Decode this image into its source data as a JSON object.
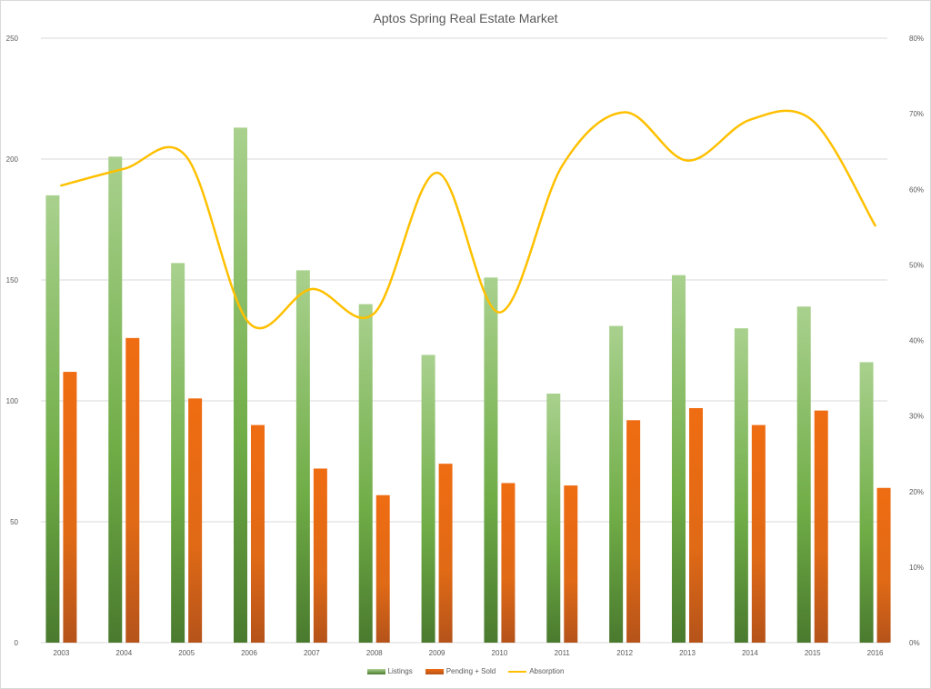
{
  "chart_data": {
    "type": "bar",
    "title": "Aptos Spring Real Estate Market",
    "xlabel": "",
    "ylabel": "",
    "categories": [
      "2003",
      "2004",
      "2005",
      "2006",
      "2007",
      "2008",
      "2009",
      "2010",
      "2011",
      "2012",
      "2013",
      "2014",
      "2015",
      "2016"
    ],
    "series": [
      {
        "name": "Listings",
        "type": "bar",
        "axis": "left",
        "color": "#70ad47",
        "values": [
          185,
          201,
          157,
          213,
          154,
          140,
          119,
          151,
          103,
          131,
          152,
          130,
          139,
          116
        ]
      },
      {
        "name": "Pending + Sold",
        "type": "bar",
        "axis": "left",
        "color": "#e8721b",
        "values": [
          112,
          126,
          101,
          90,
          72,
          61,
          74,
          66,
          65,
          92,
          97,
          90,
          96,
          64
        ]
      },
      {
        "name": "Absorption",
        "type": "line",
        "axis": "right",
        "color": "#ffc000",
        "values": [
          0.605,
          0.627,
          0.643,
          0.423,
          0.468,
          0.436,
          0.622,
          0.437,
          0.631,
          0.702,
          0.638,
          0.692,
          0.691,
          0.552
        ]
      }
    ],
    "ylim": [
      0,
      250
    ],
    "y_ticks": [
      "0",
      "50",
      "100",
      "150",
      "200",
      "250"
    ],
    "y2lim": [
      0,
      0.8
    ],
    "y2_ticks": [
      "0%",
      "10%",
      "20%",
      "30%",
      "40%",
      "50%",
      "60%",
      "70%",
      "80%"
    ],
    "grid": true,
    "legend_position": "bottom"
  },
  "legend": {
    "items": [
      {
        "label": "Listings",
        "color": "#70ad47"
      },
      {
        "label": "Pending + Sold",
        "color": "#e8721b"
      },
      {
        "label": "Absorption",
        "color": "#ffc000"
      }
    ]
  }
}
